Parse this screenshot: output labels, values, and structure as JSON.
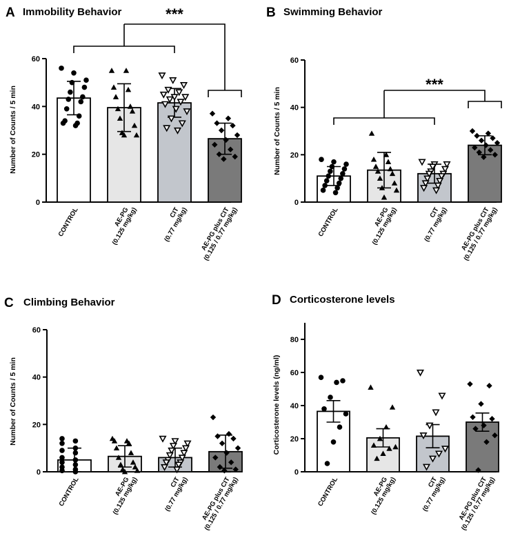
{
  "categories": [
    "CONTROL",
    "AE-PG",
    "CIT",
    "AE-PG plus CIT"
  ],
  "category_doses": [
    "",
    "(0.125 mg/kg)",
    "(0.77 mg/kg)",
    "(0.125 / 0.77 mg/kg)"
  ],
  "colors": {
    "bar_fills": [
      "#ffffff",
      "#e6e6e6",
      "#c2c6cc",
      "#7a7a7a"
    ],
    "stroke": "#000000"
  },
  "markers": [
    "circle",
    "triangle-up",
    "triangle-down",
    "diamond"
  ],
  "chart_data": [
    {
      "panel": "A",
      "type": "bar",
      "title": "Immobility Behavior",
      "ylabel": "Number of Counts / 5 min",
      "ylim": [
        0,
        60
      ],
      "yticks": [
        0,
        20,
        40,
        60
      ],
      "values": [
        43.5,
        39.5,
        41.5,
        26.5
      ],
      "errors": [
        7,
        10,
        6,
        6.5
      ],
      "points": [
        [
          56,
          54,
          51,
          50,
          48,
          46,
          44,
          43,
          42,
          39,
          36,
          34,
          33,
          33,
          32
        ],
        [
          55,
          55,
          48,
          47,
          44,
          40,
          39,
          38,
          35,
          32,
          29,
          28,
          28
        ],
        [
          53,
          51,
          49,
          47,
          46,
          45,
          44,
          44,
          43,
          42,
          41,
          39,
          38,
          35,
          33,
          31,
          30
        ],
        [
          37,
          35,
          33,
          32,
          30,
          28,
          26,
          24,
          22,
          20,
          19,
          18
        ]
      ],
      "significance": {
        "label": "***",
        "left_group": [
          "CONTROL",
          "AE-PG",
          "CIT"
        ],
        "right_group": [
          "AE-PG plus CIT"
        ]
      }
    },
    {
      "panel": "B",
      "type": "bar",
      "title": "Swimming Behavior",
      "ylabel": "Number of Counts / 5 min",
      "ylim": [
        0,
        60
      ],
      "yticks": [
        0,
        20,
        40,
        60
      ],
      "values": [
        11,
        13.5,
        12,
        24
      ],
      "errors": [
        4,
        7.5,
        4,
        4
      ],
      "points": [
        [
          18,
          17,
          16,
          15,
          14,
          13,
          12,
          11,
          10,
          9,
          8,
          7,
          6,
          5,
          4
        ],
        [
          29,
          20,
          18,
          17,
          15,
          14,
          13,
          12,
          10,
          8,
          6,
          5,
          2
        ],
        [
          17,
          16,
          16,
          15,
          14,
          13,
          12,
          12,
          11,
          10,
          9,
          8,
          7,
          6,
          5
        ],
        [
          30,
          29,
          28,
          27,
          26,
          25,
          24,
          23,
          22,
          21,
          20,
          19
        ]
      ],
      "significance": {
        "label": "***",
        "left_group": [
          "CONTROL",
          "AE-PG",
          "CIT"
        ],
        "right_group": [
          "AE-PG plus CIT"
        ]
      }
    },
    {
      "panel": "C",
      "type": "bar",
      "title": "Climbing Behavior",
      "ylabel": "Number of Counts / 5 min",
      "ylim": [
        0,
        60
      ],
      "yticks": [
        0,
        20,
        40,
        60
      ],
      "values": [
        5,
        6.5,
        6,
        8.5
      ],
      "errors": [
        5,
        4.5,
        4,
        7
      ],
      "points": [
        [
          14,
          13,
          12,
          10,
          9,
          8,
          6,
          5,
          4,
          3,
          2,
          1,
          0.5,
          0
        ],
        [
          14,
          13,
          13,
          12,
          10,
          8,
          6,
          4,
          3,
          2,
          1,
          0.5,
          0
        ],
        [
          14,
          13,
          12,
          11,
          10,
          9,
          8,
          7,
          6,
          5,
          4,
          4,
          3,
          2,
          1
        ],
        [
          23,
          16,
          15,
          14,
          12,
          10,
          8,
          6,
          4,
          2,
          1,
          0.5
        ]
      ],
      "significance": null
    },
    {
      "panel": "D",
      "type": "bar",
      "title": "Corticosterone levels",
      "ylabel": "Corticosterone levels (ng/ml)",
      "ylim": [
        0,
        90
      ],
      "yticks": [
        0,
        20,
        40,
        60,
        80
      ],
      "values": [
        36.5,
        20.5,
        21.5,
        30
      ],
      "errors": [
        6.5,
        5.5,
        7,
        5.5
      ],
      "points": [
        [
          57,
          55,
          54,
          45,
          38,
          35,
          27,
          18,
          5
        ],
        [
          51,
          39,
          27,
          20,
          16,
          15,
          14,
          11,
          8
        ],
        [
          60,
          46,
          36,
          28,
          22,
          14,
          11,
          8,
          3
        ],
        [
          53,
          52,
          41,
          33,
          32,
          28,
          26,
          22,
          18,
          1
        ]
      ],
      "significance": null
    }
  ]
}
